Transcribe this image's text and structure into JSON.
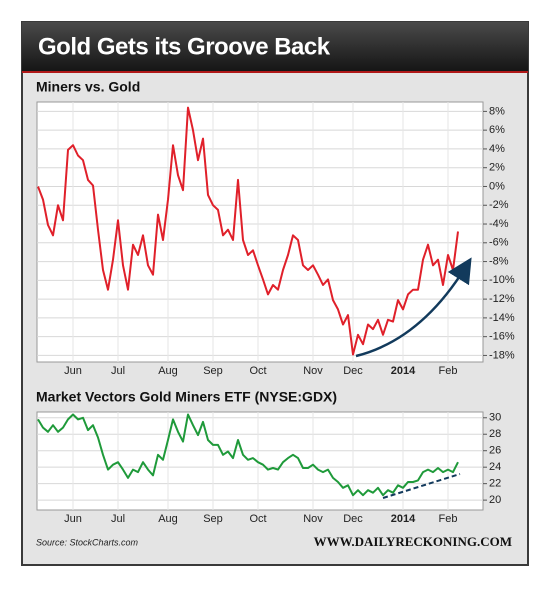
{
  "header": {
    "title": "Gold Gets its Groove Back"
  },
  "chart_data": [
    {
      "type": "line",
      "title": "Miners vs. Gold",
      "color": "#e0202a",
      "grid": true,
      "categories": [
        null,
        null,
        null,
        null,
        null,
        null,
        null,
        "Jun",
        null,
        null,
        null,
        null,
        null,
        null,
        null,
        null,
        "Jul",
        null,
        null,
        null,
        null,
        null,
        null,
        null,
        null,
        null,
        "Aug",
        null,
        null,
        null,
        null,
        null,
        null,
        null,
        null,
        "Sep",
        null,
        null,
        null,
        null,
        null,
        null,
        null,
        null,
        "Oct",
        null,
        null,
        null,
        null,
        null,
        null,
        null,
        null,
        null,
        null,
        "Nov",
        null,
        null,
        null,
        null,
        null,
        null,
        null,
        "Dec",
        null,
        null,
        null,
        null,
        null,
        null,
        null,
        null,
        null,
        "2014",
        null,
        null,
        null,
        null,
        null,
        null,
        null,
        null,
        "Feb",
        null,
        null
      ],
      "values": [
        0,
        -1.4,
        -4.1,
        -5.2,
        -2,
        -3.6,
        3.9,
        4.4,
        3.3,
        2.8,
        0.7,
        0.1,
        -4.6,
        -8.9,
        -11,
        -7.8,
        -3.6,
        -8.4,
        -11,
        -6.2,
        -7.3,
        -5.2,
        -8.4,
        -9.4,
        -3,
        -5.7,
        -1.4,
        4.4,
        1.2,
        -0.4,
        8.4,
        6,
        2.8,
        5.1,
        -0.9,
        -2,
        -2.5,
        -5.2,
        -4.6,
        -5.7,
        0.7,
        -5.7,
        -7.3,
        -6.8,
        -8.4,
        -9.9,
        -11.5,
        -10.5,
        -11,
        -8.9,
        -7.3,
        -5.2,
        -5.7,
        -8.4,
        -8.9,
        -8.4,
        -9.4,
        -10.5,
        -9.9,
        -12.1,
        -13.1,
        -14.7,
        -13.7,
        -17.9,
        -15.8,
        -16.8,
        -14.7,
        -15.2,
        -14.2,
        -15.8,
        -14.2,
        -14.4,
        -12.1,
        -13.1,
        -11.5,
        -11,
        -11,
        -7.8,
        -6.2,
        -8.4,
        -7.8,
        -10.5,
        -7.3,
        -8.9,
        -4.8
      ],
      "ylim": [
        -18.7,
        9
      ],
      "yticks": [
        {
          "value": -18,
          "label": "-18%"
        },
        {
          "value": -16,
          "label": "-16%"
        },
        {
          "value": -14,
          "label": "-14%"
        },
        {
          "value": -12,
          "label": "-12%"
        },
        {
          "value": -10,
          "label": "-10%"
        },
        {
          "value": -8,
          "label": "-8%"
        },
        {
          "value": -6,
          "label": "-6%"
        },
        {
          "value": -4,
          "label": "-4%"
        },
        {
          "value": -2,
          "label": "-2%"
        },
        {
          "value": 0,
          "label": "0%"
        },
        {
          "value": 2,
          "label": "2%"
        },
        {
          "value": 4,
          "label": "4%"
        },
        {
          "value": 6,
          "label": "6%"
        },
        {
          "value": 8,
          "label": "8%"
        }
      ]
    },
    {
      "type": "line",
      "title": "Market Vectors Gold Miners ETF (NYSE:GDX)",
      "color": "#1f9a3a",
      "grid": true,
      "categories": [
        null,
        null,
        null,
        null,
        null,
        null,
        null,
        "Jun",
        null,
        null,
        null,
        null,
        null,
        null,
        null,
        null,
        "Jul",
        null,
        null,
        null,
        null,
        null,
        null,
        null,
        null,
        null,
        "Aug",
        null,
        null,
        null,
        null,
        null,
        null,
        null,
        null,
        "Sep",
        null,
        null,
        null,
        null,
        null,
        null,
        null,
        null,
        "Oct",
        null,
        null,
        null,
        null,
        null,
        null,
        null,
        null,
        null,
        null,
        "Nov",
        null,
        null,
        null,
        null,
        null,
        null,
        null,
        "Dec",
        null,
        null,
        null,
        null,
        null,
        null,
        null,
        null,
        null,
        "2014",
        null,
        null,
        null,
        null,
        null,
        null,
        null,
        null,
        "Feb",
        null,
        null
      ],
      "values": [
        29.8,
        28.8,
        28.3,
        29.1,
        28.3,
        28.8,
        29.8,
        30.4,
        29.8,
        30,
        28.5,
        29.1,
        27.6,
        25.5,
        23.7,
        24.3,
        24.6,
        23.7,
        22.7,
        23.7,
        23.4,
        24.6,
        23.7,
        23,
        25.5,
        24.9,
        27.3,
        29.8,
        28.3,
        27.1,
        30.4,
        29.1,
        27.9,
        29.5,
        27.3,
        26.7,
        26.7,
        25.5,
        25.9,
        25.1,
        27.3,
        25.5,
        24.9,
        25.1,
        24.6,
        24.3,
        23.7,
        23.9,
        23.7,
        24.6,
        25.1,
        25.5,
        25.1,
        23.9,
        23.9,
        24.3,
        23.7,
        23.4,
        23.7,
        22.7,
        22.2,
        21.5,
        21.8,
        20.6,
        21.2,
        20.6,
        21.2,
        20.9,
        21.5,
        20.6,
        21.2,
        20.9,
        21.8,
        21.5,
        22.2,
        22.2,
        22.4,
        23.4,
        23.7,
        23.4,
        23.9,
        23.4,
        23.7,
        23.4,
        24.6
      ],
      "ylim": [
        18.8,
        30.7
      ],
      "yticks": [
        20,
        22,
        24,
        26,
        28,
        30
      ]
    }
  ],
  "footer": {
    "source": "Source: StockCharts.com",
    "watermark": "WWW.DAILYRECKONING.COM"
  }
}
